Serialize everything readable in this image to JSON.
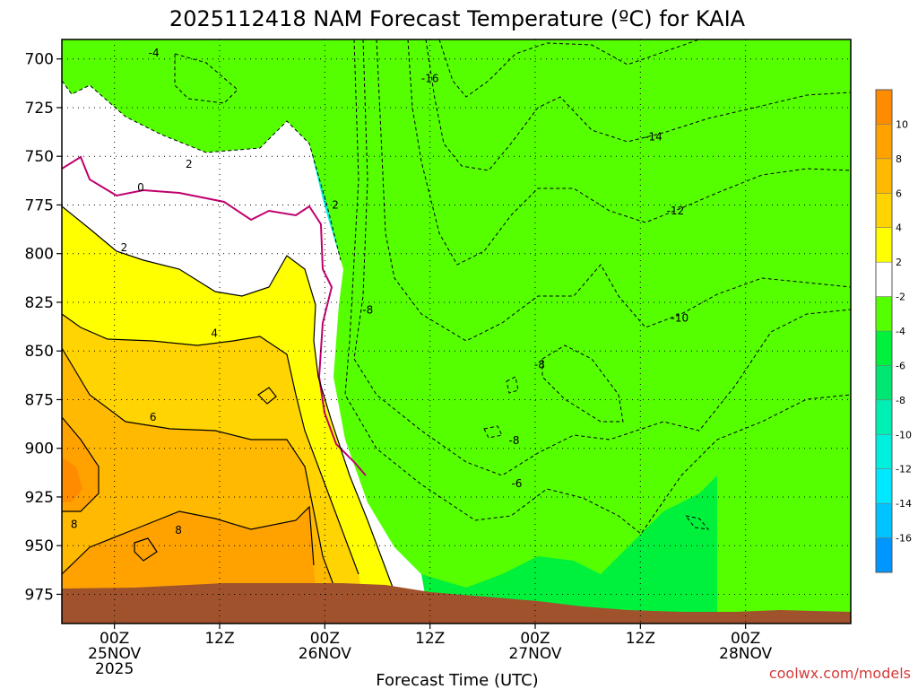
{
  "chart_data": {
    "type": "heatmap",
    "title": "2025112418 NAM Forecast Temperature (ºC) for KAIA",
    "xlabel": "Forecast Time (UTC)",
    "ylabel": "",
    "y_axis": {
      "ticks": [
        700,
        725,
        750,
        775,
        800,
        825,
        850,
        875,
        900,
        925,
        950,
        975
      ],
      "range": [
        690,
        990
      ],
      "inverted": true
    },
    "x_axis": {
      "range_hours": [
        -6,
        84
      ],
      "ticks": [
        {
          "hour": 0,
          "lines": [
            "00Z",
            "25NOV",
            "2025"
          ]
        },
        {
          "hour": 12,
          "lines": [
            "12Z"
          ]
        },
        {
          "hour": 24,
          "lines": [
            "00Z",
            "26NOV"
          ]
        },
        {
          "hour": 36,
          "lines": [
            "12Z"
          ]
        },
        {
          "hour": 48,
          "lines": [
            "00Z",
            "27NOV"
          ]
        },
        {
          "hour": 60,
          "lines": [
            "12Z"
          ]
        },
        {
          "hour": 72,
          "lines": [
            "00Z",
            "28NOV"
          ]
        }
      ]
    },
    "grid": true,
    "colorbar": {
      "position": "right",
      "labels": [
        "10",
        "8",
        "6",
        "4",
        "2",
        "-2",
        "-4",
        "-6",
        "-8",
        "-10",
        "-12",
        "-14",
        "-16"
      ],
      "bands": [
        {
          "min": 10,
          "max": 12,
          "color": "#ff8c00"
        },
        {
          "min": 8,
          "max": 10,
          "color": "#ffa200"
        },
        {
          "min": 6,
          "max": 8,
          "color": "#ffb900"
        },
        {
          "min": 4,
          "max": 6,
          "color": "#ffd400"
        },
        {
          "min": 2,
          "max": 4,
          "color": "#ffff00"
        },
        {
          "min": -2,
          "max": 2,
          "color": "#ffffff"
        },
        {
          "min": -4,
          "max": -2,
          "color": "#55ff00"
        },
        {
          "min": -6,
          "max": -4,
          "color": "#00f13c"
        },
        {
          "min": -8,
          "max": -6,
          "color": "#00e673"
        },
        {
          "min": -10,
          "max": -8,
          "color": "#00f0b4"
        },
        {
          "min": -12,
          "max": -10,
          "color": "#00f0e0"
        },
        {
          "min": -14,
          "max": -12,
          "color": "#00e8ff"
        },
        {
          "min": -16,
          "max": -14,
          "color": "#00c4ff"
        },
        {
          "min": -18,
          "max": -16,
          "color": "#0096ff"
        }
      ]
    },
    "ground_color": "#a0522d",
    "freezing_line_color": "#c0006e",
    "contour_labels": [
      {
        "text": "-4",
        "hour": 4.5,
        "p": 697
      },
      {
        "text": "2",
        "hour": 8.5,
        "p": 754
      },
      {
        "text": "0",
        "hour": 3,
        "p": 766
      },
      {
        "text": "2",
        "hour": 1.1,
        "p": 797
      },
      {
        "text": "4",
        "hour": 11.4,
        "p": 841
      },
      {
        "text": "6",
        "hour": 4.4,
        "p": 884
      },
      {
        "text": "8",
        "hour": -4.6,
        "p": 939
      },
      {
        "text": "8",
        "hour": 7.3,
        "p": 942
      },
      {
        "text": "2",
        "hour": 25.2,
        "p": 775
      },
      {
        "text": "-8",
        "hour": 28.9,
        "p": 829
      },
      {
        "text": "-16",
        "hour": 36,
        "p": 710
      },
      {
        "text": "-14",
        "hour": 61.5,
        "p": 740
      },
      {
        "text": "-12",
        "hour": 64,
        "p": 778
      },
      {
        "text": "-10",
        "hour": 64.5,
        "p": 833
      },
      {
        "text": "-8",
        "hour": 48.5,
        "p": 857
      },
      {
        "text": "-8",
        "hour": 45.6,
        "p": 896
      },
      {
        "text": "-6",
        "hour": 45.9,
        "p": 918
      }
    ]
  },
  "credit": "coolwx.com/models"
}
